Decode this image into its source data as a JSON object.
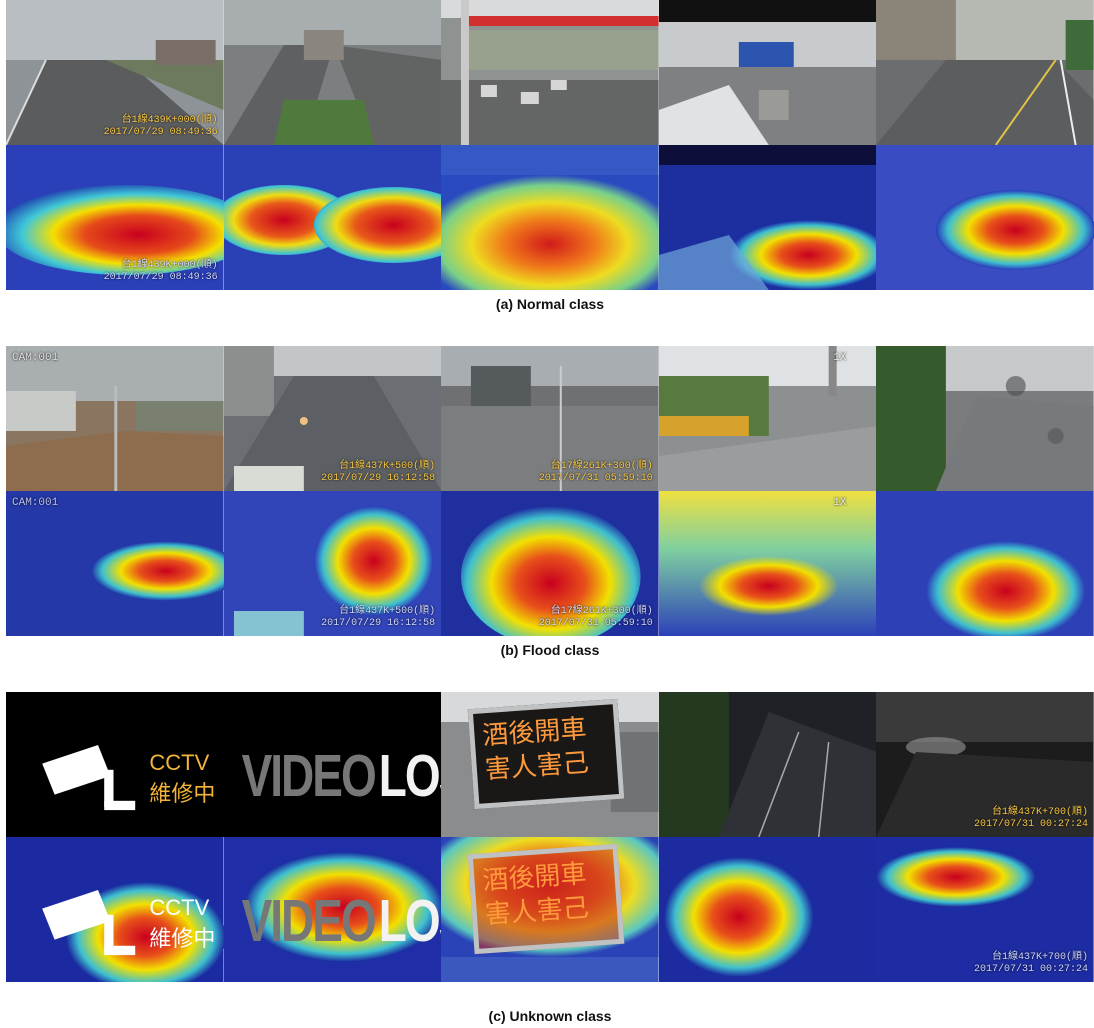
{
  "sections": [
    {
      "caption": "(a) Normal class",
      "panels": [
        {
          "osd": [
            "台1線439K+000(順)",
            "2017/07/29 08:49:36"
          ],
          "heat_osd": [
            "台1線439K+000(順)",
            "2017/07/29 08:49:36"
          ]
        },
        {},
        {},
        {},
        {}
      ]
    },
    {
      "caption": "(b) Flood class",
      "panels": [
        {
          "tl": "CAM:001"
        },
        {
          "osd": [
            "台1線437K+500(順)",
            "2017/07/29 16:12:58"
          ],
          "heat_osd": [
            "台1線437K+500(順)",
            "2017/07/29 16:12:58"
          ]
        },
        {
          "osd": [
            "台17線261K+300(順)",
            "2017/07/31 05:59:10"
          ],
          "heat_osd": [
            "台17線261K+300(順)",
            "2017/07/31 05:59:10"
          ]
        },
        {
          "tr": "1X"
        },
        {}
      ]
    },
    {
      "caption": "(c) Unknown class",
      "panels": [
        {
          "cctv": "CCTV 維修中"
        },
        {
          "vloss_a": "VIDEO",
          "vloss_b": "LOSS"
        },
        {
          "sign_l1": "酒後開車",
          "sign_l2": "害人害己"
        },
        {},
        {
          "osd": [
            "台1線437K+700(順)",
            "2017/07/31 00:27:24"
          ],
          "heat_osd": [
            "台1線437K+700(順)",
            "2017/07/31 00:27:24"
          ]
        }
      ]
    }
  ],
  "colors": {
    "heat_hot": "#c8001e",
    "heat_warm": "#f5e000",
    "heat_cold": "#1a2aa8",
    "osd_text": "#f5c542"
  }
}
